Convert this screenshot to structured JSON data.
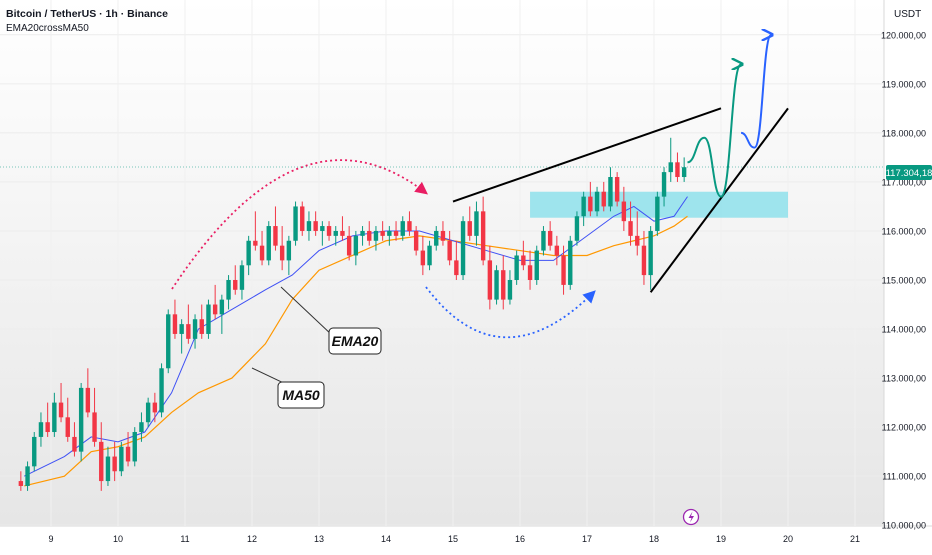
{
  "header": {
    "title": "Bitcoin / TetherUS · 1h · Binance",
    "indicator": "EMA20crossMA50"
  },
  "currency_label": "USDT",
  "price_tag": "117.304,18",
  "colors": {
    "up_candle": "#089981",
    "down_candle": "#f23645",
    "ema20": "#3f51f5",
    "ma50": "#ff9800",
    "zone": "#80deea",
    "up_arrow_green": "#089981",
    "up_arrow_blue": "#2962ff",
    "dotted_red": "#e91e63",
    "dotted_blue": "#2962ff",
    "price_tag_bg": "#089981"
  },
  "annotations": {
    "ema_label": "EMA20",
    "ma_label": "MA50"
  },
  "chart_data": {
    "type": "candlestick",
    "symbol": "BTCUSDT",
    "timeframe": "1h",
    "ylim": [
      109800,
      120400
    ],
    "y_ticks": [
      {
        "value": 110000,
        "label": "110.000,00"
      },
      {
        "value": 111000,
        "label": "111.000,00"
      },
      {
        "value": 112000,
        "label": "112.000,00"
      },
      {
        "value": 113000,
        "label": "113.000,00"
      },
      {
        "value": 114000,
        "label": "114.000,00"
      },
      {
        "value": 115000,
        "label": "115.000,00"
      },
      {
        "value": 116000,
        "label": "116.000,00"
      },
      {
        "value": 117000,
        "label": "117.000,00"
      },
      {
        "value": 118000,
        "label": "118.000,00"
      },
      {
        "value": 119000,
        "label": "119.000,00"
      },
      {
        "value": 120000,
        "label": "120.000,00"
      }
    ],
    "x_ticks": [
      "9",
      "10",
      "11",
      "12",
      "13",
      "14",
      "15",
      "16",
      "17",
      "18",
      "19",
      "20",
      "21"
    ],
    "last_price": 117304.18,
    "ema20": [
      [
        8.6,
        111000
      ],
      [
        9.2,
        111400
      ],
      [
        9.6,
        111800
      ],
      [
        10.0,
        111700
      ],
      [
        10.4,
        111900
      ],
      [
        10.8,
        112700
      ],
      [
        11.2,
        114000
      ],
      [
        11.7,
        114400
      ],
      [
        12.2,
        114800
      ],
      [
        12.6,
        115100
      ],
      [
        13.0,
        115600
      ],
      [
        13.5,
        115900
      ],
      [
        14.0,
        116000
      ],
      [
        14.5,
        116000
      ],
      [
        15.0,
        115800
      ],
      [
        15.5,
        115600
      ],
      [
        16.0,
        115400
      ],
      [
        16.5,
        115400
      ],
      [
        17.0,
        115900
      ],
      [
        17.4,
        116300
      ],
      [
        17.7,
        116500
      ],
      [
        18.0,
        116200
      ],
      [
        18.3,
        116300
      ],
      [
        18.5,
        116700
      ]
    ],
    "ma50": [
      [
        8.6,
        110800
      ],
      [
        9.2,
        111000
      ],
      [
        9.6,
        111500
      ],
      [
        10.0,
        111600
      ],
      [
        10.4,
        111800
      ],
      [
        10.8,
        112300
      ],
      [
        11.2,
        112700
      ],
      [
        11.7,
        113000
      ],
      [
        12.2,
        113700
      ],
      [
        12.6,
        114600
      ],
      [
        13.0,
        115200
      ],
      [
        13.5,
        115500
      ],
      [
        14.0,
        115800
      ],
      [
        14.5,
        115900
      ],
      [
        15.0,
        115800
      ],
      [
        15.5,
        115700
      ],
      [
        16.0,
        115600
      ],
      [
        16.5,
        115500
      ],
      [
        17.0,
        115500
      ],
      [
        17.4,
        115700
      ],
      [
        17.7,
        115800
      ],
      [
        18.0,
        115900
      ],
      [
        18.3,
        116100
      ],
      [
        18.5,
        116300
      ]
    ],
    "resistance_line": [
      [
        15.0,
        116600
      ],
      [
        19.0,
        118500
      ]
    ],
    "support_line": [
      [
        17.95,
        114750
      ],
      [
        20.0,
        118500
      ]
    ],
    "zone": {
      "x0": 16.15,
      "x1": 20.0,
      "y0": 116270,
      "y1": 116800
    },
    "projection_green": [
      [
        18.5,
        117400
      ],
      [
        18.75,
        117900
      ],
      [
        19.0,
        116700
      ],
      [
        19.3,
        119400
      ]
    ],
    "projection_blue": [
      [
        19.3,
        118000
      ],
      [
        19.5,
        117700
      ],
      [
        19.75,
        120000
      ]
    ],
    "candles": [
      [
        8.55,
        110900,
        111100,
        110700,
        110800
      ],
      [
        8.65,
        110800,
        111300,
        110700,
        111200
      ],
      [
        8.75,
        111200,
        111900,
        111100,
        111800
      ],
      [
        8.85,
        111800,
        112300,
        111600,
        112100
      ],
      [
        8.95,
        112100,
        112500,
        111800,
        111900
      ],
      [
        9.05,
        111900,
        112700,
        111800,
        112500
      ],
      [
        9.15,
        112500,
        112900,
        112100,
        112200
      ],
      [
        9.25,
        112200,
        112600,
        111700,
        111800
      ],
      [
        9.35,
        111800,
        112100,
        111400,
        111500
      ],
      [
        9.45,
        111500,
        112900,
        111300,
        112800
      ],
      [
        9.55,
        112800,
        113200,
        112200,
        112300
      ],
      [
        9.65,
        112300,
        112800,
        111600,
        111700
      ],
      [
        9.75,
        111700,
        112100,
        110700,
        110900
      ],
      [
        9.85,
        110900,
        111600,
        110800,
        111400
      ],
      [
        9.95,
        111400,
        111700,
        110900,
        111100
      ],
      [
        10.05,
        111100,
        111700,
        111000,
        111600
      ],
      [
        10.15,
        111600,
        111900,
        111200,
        111300
      ],
      [
        10.25,
        111300,
        112000,
        111200,
        111900
      ],
      [
        10.35,
        111900,
        112300,
        111700,
        112100
      ],
      [
        10.45,
        112100,
        112600,
        112000,
        112500
      ],
      [
        10.55,
        112500,
        112700,
        112100,
        112300
      ],
      [
        10.65,
        112300,
        113300,
        112200,
        113200
      ],
      [
        10.75,
        113200,
        114400,
        113100,
        114300
      ],
      [
        10.85,
        114300,
        114600,
        113800,
        113900
      ],
      [
        10.95,
        113900,
        114200,
        113500,
        114100
      ],
      [
        11.05,
        114100,
        114500,
        113700,
        113800
      ],
      [
        11.15,
        113800,
        114300,
        113600,
        114200
      ],
      [
        11.25,
        114200,
        114500,
        113800,
        113900
      ],
      [
        11.35,
        113900,
        114600,
        113800,
        114500
      ],
      [
        11.45,
        114500,
        114900,
        114200,
        114300
      ],
      [
        11.55,
        114300,
        114700,
        113900,
        114600
      ],
      [
        11.65,
        114600,
        115100,
        114400,
        115000
      ],
      [
        11.75,
        115000,
        115300,
        114700,
        114800
      ],
      [
        11.85,
        114800,
        115400,
        114600,
        115300
      ],
      [
        11.95,
        115300,
        115900,
        115100,
        115800
      ],
      [
        12.05,
        115800,
        116400,
        115600,
        115700
      ],
      [
        12.15,
        115700,
        116000,
        115300,
        115400
      ],
      [
        12.25,
        115400,
        116200,
        115300,
        116100
      ],
      [
        12.35,
        116100,
        116500,
        115600,
        115700
      ],
      [
        12.45,
        115700,
        116100,
        115200,
        115400
      ],
      [
        12.55,
        115400,
        115900,
        115100,
        115800
      ],
      [
        12.65,
        115800,
        116600,
        115700,
        116500
      ],
      [
        12.75,
        116500,
        116600,
        115900,
        116000
      ],
      [
        12.85,
        116000,
        116400,
        115800,
        116200
      ],
      [
        12.95,
        116200,
        116400,
        115900,
        116000
      ],
      [
        13.05,
        116000,
        116200,
        115700,
        116100
      ],
      [
        13.15,
        116100,
        116200,
        115800,
        115900
      ],
      [
        13.25,
        115900,
        116100,
        115700,
        116000
      ],
      [
        13.35,
        116000,
        116300,
        115800,
        115900
      ],
      [
        13.45,
        115900,
        116100,
        115400,
        115500
      ],
      [
        13.55,
        115500,
        116000,
        115300,
        115900
      ],
      [
        13.65,
        115900,
        116100,
        115700,
        116000
      ],
      [
        13.75,
        116000,
        116200,
        115700,
        115800
      ],
      [
        13.85,
        115800,
        116100,
        115600,
        116000
      ],
      [
        13.95,
        116000,
        116200,
        115800,
        115900
      ],
      [
        14.05,
        115900,
        116100,
        115700,
        116000
      ],
      [
        14.15,
        116000,
        116200,
        115800,
        115900
      ],
      [
        14.25,
        115900,
        116300,
        115800,
        116200
      ],
      [
        14.35,
        116200,
        116400,
        115900,
        116000
      ],
      [
        14.45,
        116000,
        116100,
        115500,
        115600
      ],
      [
        14.55,
        115600,
        115900,
        115100,
        115300
      ],
      [
        14.65,
        115300,
        115800,
        115200,
        115700
      ],
      [
        14.75,
        115700,
        116100,
        115600,
        116000
      ],
      [
        14.85,
        116000,
        116200,
        115700,
        115800
      ],
      [
        14.95,
        115800,
        116000,
        115300,
        115400
      ],
      [
        15.05,
        115400,
        115800,
        115000,
        115100
      ],
      [
        15.15,
        115100,
        116300,
        115000,
        116200
      ],
      [
        15.25,
        116200,
        116500,
        115800,
        115900
      ],
      [
        15.35,
        115900,
        116600,
        115700,
        116400
      ],
      [
        15.45,
        116400,
        116700,
        115300,
        115400
      ],
      [
        15.55,
        115400,
        115700,
        114400,
        114600
      ],
      [
        15.65,
        114600,
        115300,
        114500,
        115200
      ],
      [
        15.75,
        115200,
        115500,
        114400,
        114600
      ],
      [
        15.85,
        114600,
        115200,
        114500,
        115000
      ],
      [
        15.95,
        115000,
        115600,
        114900,
        115500
      ],
      [
        16.05,
        115500,
        115800,
        115200,
        115300
      ],
      [
        16.15,
        115300,
        115600,
        114800,
        115000
      ],
      [
        16.25,
        115000,
        115700,
        114900,
        115600
      ],
      [
        16.35,
        115600,
        116100,
        115500,
        116000
      ],
      [
        16.45,
        116000,
        116200,
        115600,
        115700
      ],
      [
        16.55,
        115700,
        115900,
        115300,
        115500
      ],
      [
        16.65,
        115500,
        115700,
        114700,
        114900
      ],
      [
        16.75,
        114900,
        115900,
        114800,
        115800
      ],
      [
        16.85,
        115800,
        116400,
        115700,
        116300
      ],
      [
        16.95,
        116300,
        116800,
        116100,
        116700
      ],
      [
        17.05,
        116700,
        117000,
        116300,
        116400
      ],
      [
        17.15,
        116400,
        116900,
        116300,
        116800
      ],
      [
        17.25,
        116800,
        117000,
        116400,
        116500
      ],
      [
        17.35,
        116500,
        117300,
        116400,
        117100
      ],
      [
        17.45,
        117100,
        117200,
        116500,
        116600
      ],
      [
        17.55,
        116600,
        116900,
        116000,
        116200
      ],
      [
        17.65,
        116200,
        116600,
        115700,
        115900
      ],
      [
        17.75,
        115900,
        116400,
        115500,
        115700
      ],
      [
        17.85,
        115700,
        116000,
        114900,
        115100
      ],
      [
        17.95,
        115100,
        116100,
        114800,
        116000
      ],
      [
        18.05,
        116000,
        116800,
        115900,
        116700
      ],
      [
        18.15,
        116700,
        117300,
        116500,
        117200
      ],
      [
        18.25,
        117200,
        117900,
        117000,
        117400
      ],
      [
        18.35,
        117400,
        117600,
        117000,
        117100
      ],
      [
        18.45,
        117100,
        117500,
        117000,
        117300
      ]
    ]
  }
}
